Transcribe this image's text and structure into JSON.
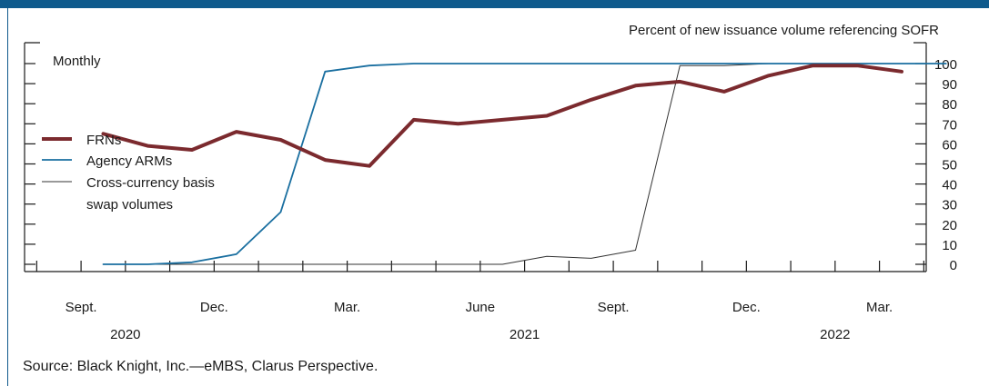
{
  "chart_data": {
    "type": "line",
    "title": "",
    "ylabel": "Percent of new issuance volume referencing SOFR",
    "frequency_note": "Monthly",
    "ylim": [
      0,
      106
    ],
    "yticks": [
      0,
      10,
      20,
      30,
      40,
      50,
      60,
      70,
      80,
      90,
      100
    ],
    "xlim": [
      "2020-07-15",
      "2022-04-15"
    ],
    "x_tick_months": [
      "2020-08",
      "2020-09",
      "2020-10",
      "2020-11",
      "2020-12",
      "2021-01",
      "2021-02",
      "2021-03",
      "2021-04",
      "2021-05",
      "2021-06",
      "2021-07",
      "2021-08",
      "2021-09",
      "2021-10",
      "2021-11",
      "2021-12",
      "2022-01",
      "2022-02",
      "2022-03",
      "2022-04"
    ],
    "x_labels": [
      {
        "month": "2020-09",
        "label": "Sept."
      },
      {
        "month": "2020-12",
        "label": "Dec."
      },
      {
        "month": "2021-03",
        "label": "Mar."
      },
      {
        "month": "2021-06",
        "label": "June"
      },
      {
        "month": "2021-09",
        "label": "Sept."
      },
      {
        "month": "2021-12",
        "label": "Dec."
      },
      {
        "month": "2022-03",
        "label": "Mar."
      }
    ],
    "year_labels": [
      {
        "month": "2020-10",
        "label": "2020"
      },
      {
        "month": "2021-07",
        "label": "2021"
      },
      {
        "month": "2022-02",
        "label": "2022"
      }
    ],
    "series": [
      {
        "name": "FRNs",
        "color": "#7b2a2e",
        "stroke": "thick",
        "x": [
          "2020-09",
          "2020-10",
          "2020-11",
          "2020-12",
          "2021-01",
          "2021-02",
          "2021-03",
          "2021-04",
          "2021-05",
          "2021-06",
          "2021-07",
          "2021-08",
          "2021-09",
          "2021-10",
          "2021-11",
          "2021-12",
          "2022-01",
          "2022-02",
          "2022-03",
          "2022-04"
        ],
        "values": [
          65,
          59,
          57,
          66,
          62,
          52,
          49,
          72,
          70,
          72,
          74,
          82,
          89,
          91,
          86,
          94,
          99,
          99,
          96,
          null
        ]
      },
      {
        "name": "Agency ARMs",
        "color": "#1a6fa0",
        "stroke": "medium",
        "x": [
          "2020-09",
          "2020-10",
          "2020-11",
          "2020-12",
          "2021-01",
          "2021-02",
          "2021-03",
          "2021-04",
          "2021-05",
          "2021-06",
          "2021-07",
          "2021-08",
          "2021-09",
          "2021-10",
          "2021-11",
          "2021-12",
          "2022-01",
          "2022-02",
          "2022-03",
          "2022-04"
        ],
        "values": [
          0,
          0,
          1,
          5,
          26,
          96,
          99,
          100,
          100,
          100,
          100,
          100,
          100,
          100,
          100,
          100,
          100,
          100,
          100,
          100
        ]
      },
      {
        "name": "Cross-currency basis swap volumes",
        "color": "#333333",
        "stroke": "thin",
        "x": [
          "2020-09",
          "2020-10",
          "2020-11",
          "2020-12",
          "2021-01",
          "2021-02",
          "2021-03",
          "2021-04",
          "2021-05",
          "2021-06",
          "2021-07",
          "2021-08",
          "2021-09",
          "2021-10",
          "2021-11",
          "2021-12",
          "2022-01",
          "2022-02",
          "2022-03",
          "2022-04"
        ],
        "values": [
          0,
          0,
          0,
          0,
          0,
          0,
          0,
          0,
          0,
          0,
          4,
          3,
          7,
          99,
          99,
          100,
          100,
          100,
          100,
          100
        ]
      }
    ],
    "legend": {
      "placement": "left-middle",
      "entries": [
        {
          "label": "FRNs",
          "color": "#7b2a2e"
        },
        {
          "label": "Agency ARMs",
          "color": "#1a6fa0"
        },
        {
          "label": "Cross-currency basis",
          "label2": "swap volumes",
          "color": "#333333"
        }
      ]
    },
    "grid": false
  },
  "source": "Source: Black Knight, Inc.—eMBS, Clarus Perspective."
}
